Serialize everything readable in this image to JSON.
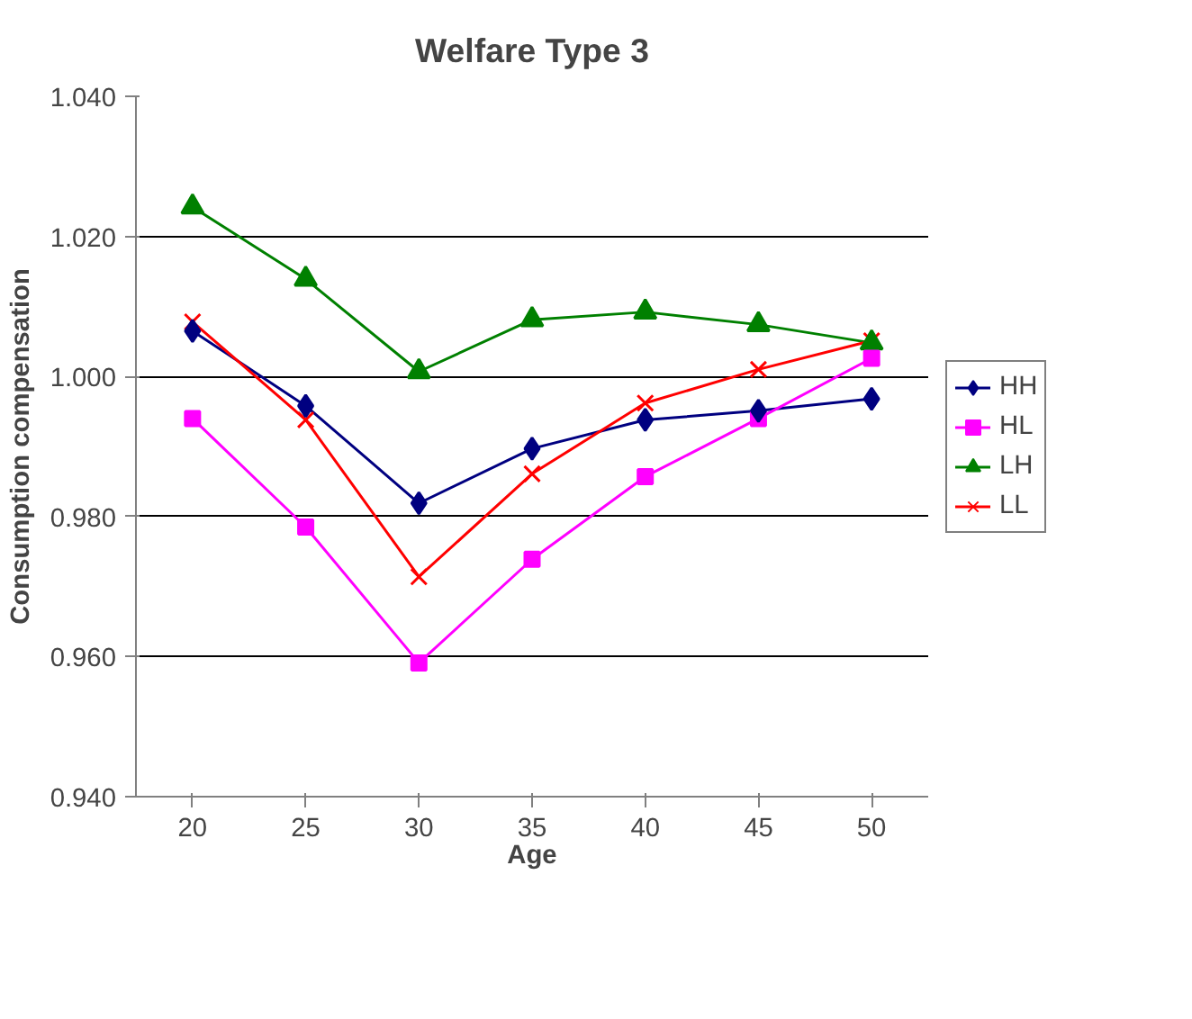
{
  "chart_data": {
    "type": "line",
    "title": "Welfare Type 3",
    "xlabel": "Age",
    "ylabel": "Consumption compensation",
    "categories": [
      "20",
      "25",
      "30",
      "35",
      "40",
      "45",
      "50"
    ],
    "series": [
      {
        "name": "HH",
        "color": "#000080",
        "marker": "diamond",
        "values": [
          1.0065,
          0.9958,
          0.9819,
          0.9897,
          0.9938,
          0.9951,
          0.9968
        ]
      },
      {
        "name": "HL",
        "color": "#ff00ff",
        "marker": "square",
        "values": [
          0.994,
          0.9785,
          0.9591,
          0.9739,
          0.9857,
          0.994,
          1.0026
        ]
      },
      {
        "name": "LH",
        "color": "#008000",
        "marker": "triangle",
        "values": [
          1.0242,
          1.0139,
          1.0007,
          1.0081,
          1.0092,
          1.0074,
          1.0048
        ]
      },
      {
        "name": "LL",
        "color": "#ff0000",
        "marker": "cross",
        "values": [
          1.0078,
          0.9938,
          0.9714,
          0.9861,
          0.9962,
          1.001,
          1.0051
        ]
      }
    ],
    "ylim": [
      0.94,
      1.04
    ],
    "yticks": [
      {
        "value": 0.94,
        "label": "0.940"
      },
      {
        "value": 0.96,
        "label": "0.960"
      },
      {
        "value": 0.98,
        "label": "0.980"
      },
      {
        "value": 1.0,
        "label": "1.000"
      },
      {
        "value": 1.02,
        "label": "1.020"
      },
      {
        "value": 1.04,
        "label": "1.040"
      }
    ],
    "grid": "y",
    "legend": "right"
  }
}
